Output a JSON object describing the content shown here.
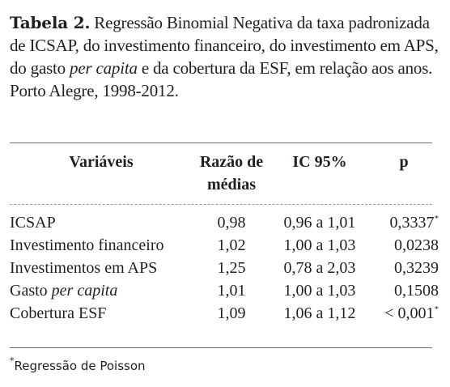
{
  "caption": {
    "label": "Tabela 2.",
    "text_before": " Regressão Binomial Negativa da taxa padronizada de ICSAP, do investimento financeiro, do investimento em APS, do gasto ",
    "italic": "per capita",
    "text_after": " e da cobertura da ESF, em relação aos anos. Porto Alegre, 1998-2012."
  },
  "table": {
    "headers": [
      "Variáveis",
      "Razão de médias",
      "IC 95%",
      "p"
    ],
    "rows": [
      {
        "var_pre": "ICSAP",
        "var_italic": "",
        "rm": "0,98",
        "ic": "0,96 a 1,01",
        "p_pre": "",
        "p": "0,3337",
        "mark": "*"
      },
      {
        "var_pre": "Investimento financeiro",
        "var_italic": "",
        "rm": "1,02",
        "ic": "1,00 a 1,03",
        "p_pre": "",
        "p": "0,0238",
        "mark": ""
      },
      {
        "var_pre": "Investimentos em APS",
        "var_italic": "",
        "rm": "1,25",
        "ic": "0,78 a 2,03",
        "p_pre": "",
        "p": "0,3239",
        "mark": ""
      },
      {
        "var_pre": "Gasto ",
        "var_italic": "per capita",
        "rm": "1,01",
        "ic": "1,00 a 1,03",
        "p_pre": "",
        "p": "0,1508",
        "mark": ""
      },
      {
        "var_pre": "Cobertura ESF",
        "var_italic": "",
        "rm": "1,09",
        "ic": "1,06 a 1,12",
        "p_pre": "< ",
        "p": "0,001",
        "mark": "*"
      }
    ]
  },
  "footnote": {
    "mark": "*",
    "text": "Regressão de Poisson"
  }
}
